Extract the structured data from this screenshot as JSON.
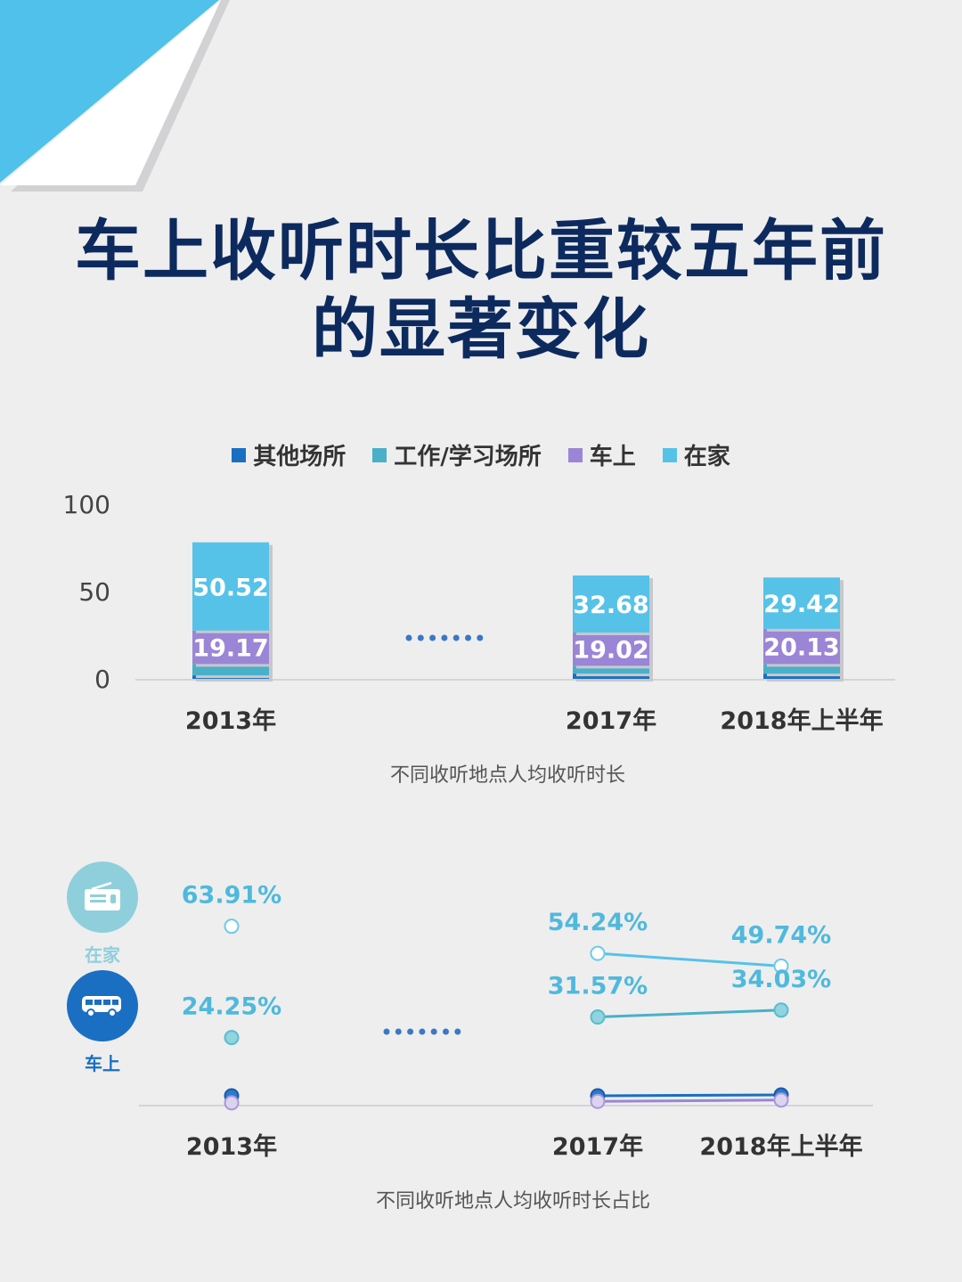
{
  "title_lines": [
    "车上收听时长比重较五年前",
    "的显著变化"
  ],
  "colors": {
    "other": "#1a6fc2",
    "work": "#4ab0c8",
    "car": "#9b85d6",
    "home": "#56c2e8",
    "title": "#0d2a5e"
  },
  "legend": [
    "其他场所",
    "工作/学习场所",
    "车上",
    "在家"
  ],
  "side_labels": {
    "home": "在家",
    "car": "车上"
  },
  "side_icons": {
    "home": "radio-icon",
    "car": "bus-icon"
  },
  "chart_data": [
    {
      "type": "bar",
      "stacked": true,
      "categories": [
        "2013年",
        "2017年",
        "2018年上半年"
      ],
      "yticks": [
        "100",
        "50",
        "0"
      ],
      "ylim": [
        0,
        100
      ],
      "series": [
        {
          "name": "其他场所",
          "values": [
            2.0,
            3.0,
            3.0
          ]
        },
        {
          "name": "工作/学习场所",
          "values": [
            6.5,
            4.5,
            5.5
          ]
        },
        {
          "name": "车上",
          "values": [
            19.17,
            19.02,
            20.13
          ]
        },
        {
          "name": "在家",
          "values": [
            50.52,
            32.68,
            29.42
          ]
        }
      ],
      "value_labels": {
        "车上": [
          "19.17",
          "19.02",
          "20.13"
        ],
        "在家": [
          "50.52",
          "32.68",
          "29.42"
        ]
      },
      "caption": "不同收听地点人均收听时长"
    },
    {
      "type": "line",
      "categories": [
        "2013年",
        "2017年",
        "2018年上半年"
      ],
      "series": [
        {
          "name": "在家",
          "values": [
            63.91,
            54.24,
            49.74
          ]
        },
        {
          "name": "车上",
          "values": [
            24.25,
            31.57,
            34.03
          ]
        },
        {
          "name": "其他场所",
          "values": [
            3.5,
            3.5,
            3.8
          ]
        },
        {
          "name": "工作/学习场所",
          "values": [
            1.0,
            1.5,
            2.0
          ]
        }
      ],
      "value_labels": {
        "在家": [
          "63.91%",
          "54.24%",
          "49.74%"
        ],
        "车上": [
          "24.25%",
          "31.57%",
          "34.03%"
        ]
      },
      "caption": "不同收听地点人均收听时长占比"
    }
  ]
}
